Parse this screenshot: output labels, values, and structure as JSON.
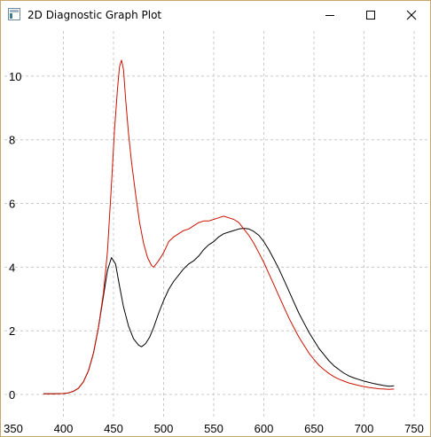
{
  "window": {
    "title": "2D Diagnostic Graph Plot",
    "icon": "app-graph-icon",
    "controls": [
      "minimize-icon",
      "maximize-icon",
      "close-icon"
    ]
  },
  "colors": {
    "series_black": "#000000",
    "series_red": "#cc1100",
    "grid": "#c8c8c8",
    "window_border": "#c9a66b"
  },
  "chart_data": {
    "type": "line",
    "title": "",
    "xlabel": "",
    "ylabel": "",
    "xlim": [
      350,
      750
    ],
    "ylim": [
      -0.5,
      11.5
    ],
    "x_ticks": [
      350,
      400,
      450,
      500,
      550,
      600,
      650,
      700,
      750
    ],
    "y_ticks": [
      0,
      2,
      4,
      6,
      8,
      10
    ],
    "grid": true,
    "legend": "none",
    "series": [
      {
        "color": "#000000",
        "x": [
          380,
          390,
          400,
          405,
          410,
          415,
          420,
          425,
          430,
          435,
          440,
          444,
          448,
          452,
          456,
          460,
          465,
          470,
          475,
          478,
          482,
          486,
          490,
          495,
          500,
          505,
          510,
          515,
          520,
          525,
          530,
          535,
          540,
          545,
          550,
          555,
          560,
          565,
          570,
          575,
          580,
          585,
          590,
          595,
          600,
          605,
          610,
          615,
          620,
          625,
          630,
          635,
          640,
          645,
          650,
          655,
          660,
          665,
          670,
          675,
          680,
          685,
          690,
          695,
          700,
          705,
          710,
          715,
          720,
          725,
          730
        ],
        "values": [
          0.02,
          0.02,
          0.03,
          0.05,
          0.1,
          0.2,
          0.4,
          0.75,
          1.3,
          2.1,
          3.1,
          3.9,
          4.3,
          4.1,
          3.4,
          2.75,
          2.15,
          1.75,
          1.55,
          1.5,
          1.6,
          1.8,
          2.1,
          2.55,
          2.95,
          3.3,
          3.55,
          3.75,
          3.95,
          4.1,
          4.2,
          4.35,
          4.55,
          4.7,
          4.8,
          4.95,
          5.05,
          5.1,
          5.15,
          5.2,
          5.22,
          5.2,
          5.12,
          5.0,
          4.8,
          4.55,
          4.25,
          3.95,
          3.6,
          3.25,
          2.9,
          2.55,
          2.25,
          1.95,
          1.7,
          1.45,
          1.25,
          1.06,
          0.9,
          0.78,
          0.67,
          0.58,
          0.52,
          0.47,
          0.42,
          0.38,
          0.34,
          0.31,
          0.28,
          0.26,
          0.27
        ]
      },
      {
        "color": "#cc1100",
        "x": [
          380,
          390,
          400,
          405,
          410,
          415,
          420,
          425,
          430,
          435,
          440,
          444,
          448,
          451,
          454,
          456,
          458,
          460,
          462,
          465,
          468,
          472,
          476,
          480,
          484,
          488,
          490,
          495,
          500,
          505,
          510,
          515,
          520,
          525,
          530,
          535,
          540,
          545,
          550,
          555,
          560,
          565,
          570,
          575,
          580,
          585,
          590,
          595,
          600,
          605,
          610,
          615,
          620,
          625,
          630,
          635,
          640,
          645,
          650,
          655,
          660,
          665,
          670,
          675,
          680,
          685,
          690,
          695,
          700,
          705,
          710,
          715,
          720,
          725,
          730
        ],
        "values": [
          0.02,
          0.02,
          0.03,
          0.05,
          0.1,
          0.2,
          0.4,
          0.75,
          1.3,
          2.1,
          3.2,
          4.5,
          6.6,
          8.3,
          9.6,
          10.3,
          10.5,
          10.2,
          9.3,
          8.2,
          7.3,
          6.3,
          5.4,
          4.75,
          4.3,
          4.05,
          4.0,
          4.2,
          4.45,
          4.8,
          4.95,
          5.05,
          5.15,
          5.2,
          5.3,
          5.4,
          5.45,
          5.45,
          5.5,
          5.55,
          5.6,
          5.55,
          5.5,
          5.4,
          5.2,
          5.0,
          4.75,
          4.45,
          4.15,
          3.8,
          3.45,
          3.1,
          2.75,
          2.4,
          2.1,
          1.8,
          1.55,
          1.3,
          1.1,
          0.92,
          0.78,
          0.66,
          0.56,
          0.48,
          0.42,
          0.36,
          0.32,
          0.28,
          0.25,
          0.22,
          0.2,
          0.18,
          0.17,
          0.16,
          0.17
        ]
      }
    ]
  }
}
